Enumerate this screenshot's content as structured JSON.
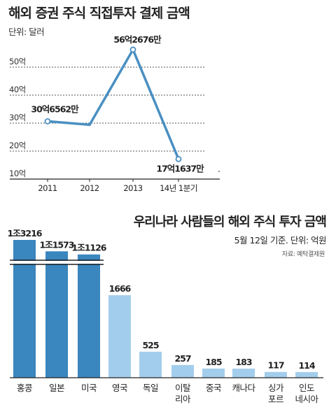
{
  "chart_data": [
    {
      "type": "line",
      "title": "해외 증권 주식 직접투자 결제 금액",
      "unit_label": "단위: 달러",
      "y_ticks": [
        "10억",
        "20억",
        "30억",
        "40억",
        "50억"
      ],
      "y_tick_values": [
        10,
        20,
        30,
        40,
        50
      ],
      "ylim": [
        10,
        58
      ],
      "categories": [
        "2011",
        "2012",
        "2013",
        "14년 1분기"
      ],
      "series": [
        {
          "values": [
            30.6562,
            29.4,
            56.2676,
            17.1637
          ],
          "labels": [
            "30억6562만",
            "",
            "56억2676만",
            "17억1637만"
          ]
        }
      ],
      "grid": true,
      "line_color": "#4a8fc2"
    },
    {
      "type": "bar",
      "title": "우리나라 사람들의 해외 주식 투자 금액",
      "note": "5월 12일 기준. 단위: 억원",
      "source": "자료: 예탁결제원",
      "categories": [
        "홍콩",
        "일본",
        "미국",
        "영국",
        "독일",
        "이탈\n리아",
        "중국",
        "캐나다",
        "싱가\n포르",
        "인도\n네시아"
      ],
      "values": [
        13216,
        11573,
        11126,
        1666,
        525,
        257,
        185,
        183,
        117,
        114
      ],
      "value_labels": [
        "1조3216",
        "1조1573",
        "1조1126",
        "1666",
        "525",
        "257",
        "185",
        "183",
        "117",
        "114"
      ],
      "axis_break": true,
      "colors": {
        "top_bar": "#3a86be",
        "other_bar": "#a3cdec"
      }
    }
  ]
}
